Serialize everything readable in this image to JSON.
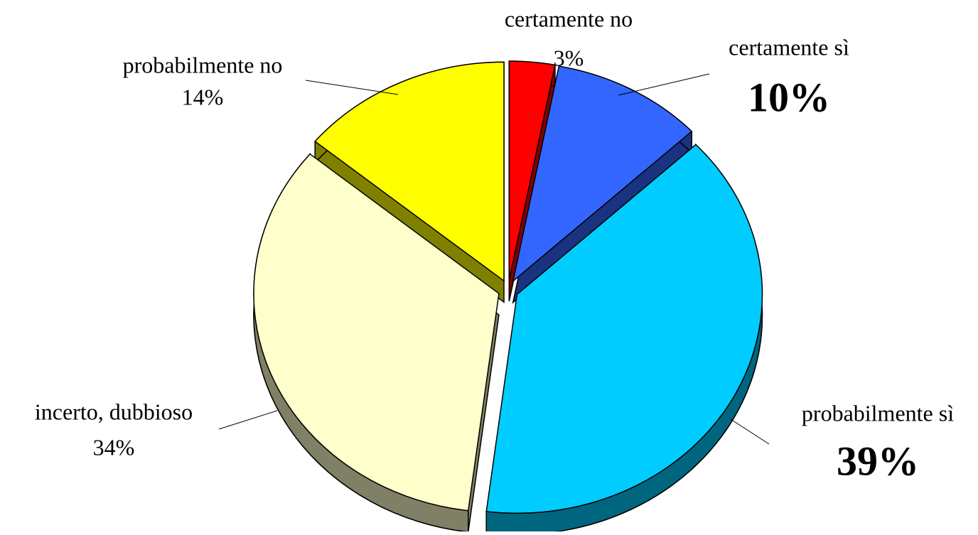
{
  "chart_data": {
    "type": "pie",
    "categories": [
      "certamente no",
      "certamente sì",
      "probabilmente sì",
      "incerto, dubbioso",
      "probabilmente no"
    ],
    "values": [
      3,
      10,
      39,
      34,
      14
    ],
    "value_labels": [
      "3%",
      "10%",
      "39%",
      "34%",
      "14%"
    ],
    "bold_labels": [
      false,
      true,
      true,
      false,
      false
    ],
    "colors": [
      "#ff0000",
      "#3366ff",
      "#00ccff",
      "#ffffcc",
      "#ffff00"
    ]
  }
}
